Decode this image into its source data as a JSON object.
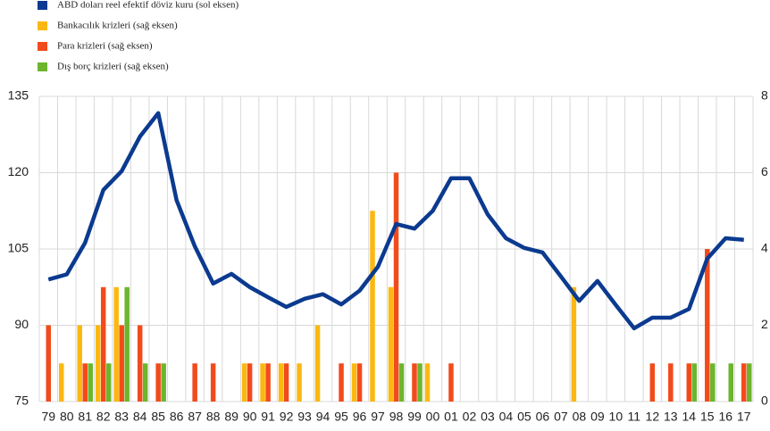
{
  "chart_data": {
    "type": "combo",
    "categories": [
      "79",
      "80",
      "81",
      "82",
      "83",
      "84",
      "85",
      "86",
      "87",
      "88",
      "89",
      "90",
      "91",
      "92",
      "93",
      "94",
      "95",
      "96",
      "97",
      "98",
      "99",
      "00",
      "01",
      "02",
      "03",
      "04",
      "05",
      "06",
      "07",
      "08",
      "09",
      "10",
      "11",
      "12",
      "13",
      "14",
      "15",
      "16",
      "17"
    ],
    "series": [
      {
        "name": "ABD doları reel efektif döviz kuru (sol eksen)",
        "type": "line",
        "axis": "y",
        "color": "#0b3a8f",
        "values": [
          99,
          100,
          106.2,
          116.6,
          120.3,
          127.1,
          131.7,
          114.6,
          105.5,
          98.2,
          100.1,
          97.5,
          95.5,
          93.6,
          95.2,
          96.1,
          94.1,
          96.8,
          101.5,
          109.9,
          109,
          112.5,
          118.9,
          118.9,
          111.8,
          107.1,
          105.2,
          104.3,
          99.6,
          94.8,
          98.7,
          94,
          89.4,
          91.5,
          91.5,
          93.2,
          103.1,
          107.1,
          106.8
        ]
      },
      {
        "name": "Bankacılık krizleri (sağ eksen)",
        "type": "bar",
        "axis": "y2",
        "color": "#fbb811",
        "values": [
          0,
          1,
          2,
          2,
          3,
          0,
          0,
          0,
          0,
          0,
          0,
          1,
          1,
          1,
          1,
          2,
          0,
          1,
          5,
          3,
          0,
          1,
          0,
          0,
          0,
          0,
          0,
          0,
          0,
          3,
          0,
          0,
          0,
          0,
          0,
          0,
          0,
          0,
          0
        ]
      },
      {
        "name": "Para krizleri (sağ eksen)",
        "type": "bar",
        "axis": "y2",
        "color": "#f24b1b",
        "values": [
          2,
          0,
          1,
          3,
          2,
          2,
          1,
          0,
          1,
          1,
          0,
          1,
          1,
          1,
          0,
          0,
          1,
          1,
          0,
          6,
          1,
          0,
          1,
          0,
          0,
          0,
          0,
          0,
          0,
          0,
          0,
          0,
          0,
          1,
          1,
          1,
          4,
          0,
          1
        ]
      },
      {
        "name": "Dış borç krizleri (sağ eksen)",
        "type": "bar",
        "axis": "y2",
        "color": "#6cb52d",
        "values": [
          0,
          0,
          1,
          1,
          3,
          1,
          1,
          0,
          0,
          0,
          0,
          0,
          0,
          0,
          0,
          0,
          0,
          0,
          0,
          1,
          1,
          0,
          0,
          0,
          0,
          0,
          0,
          0,
          0,
          0,
          0,
          0,
          0,
          0,
          0,
          1,
          1,
          1,
          1
        ]
      }
    ],
    "ylim": [
      75,
      135
    ],
    "yticks": [
      75,
      90,
      105,
      120,
      135
    ],
    "y2lim": [
      0,
      8
    ],
    "y2ticks": [
      0,
      2,
      4,
      6,
      8
    ],
    "grid": true
  }
}
